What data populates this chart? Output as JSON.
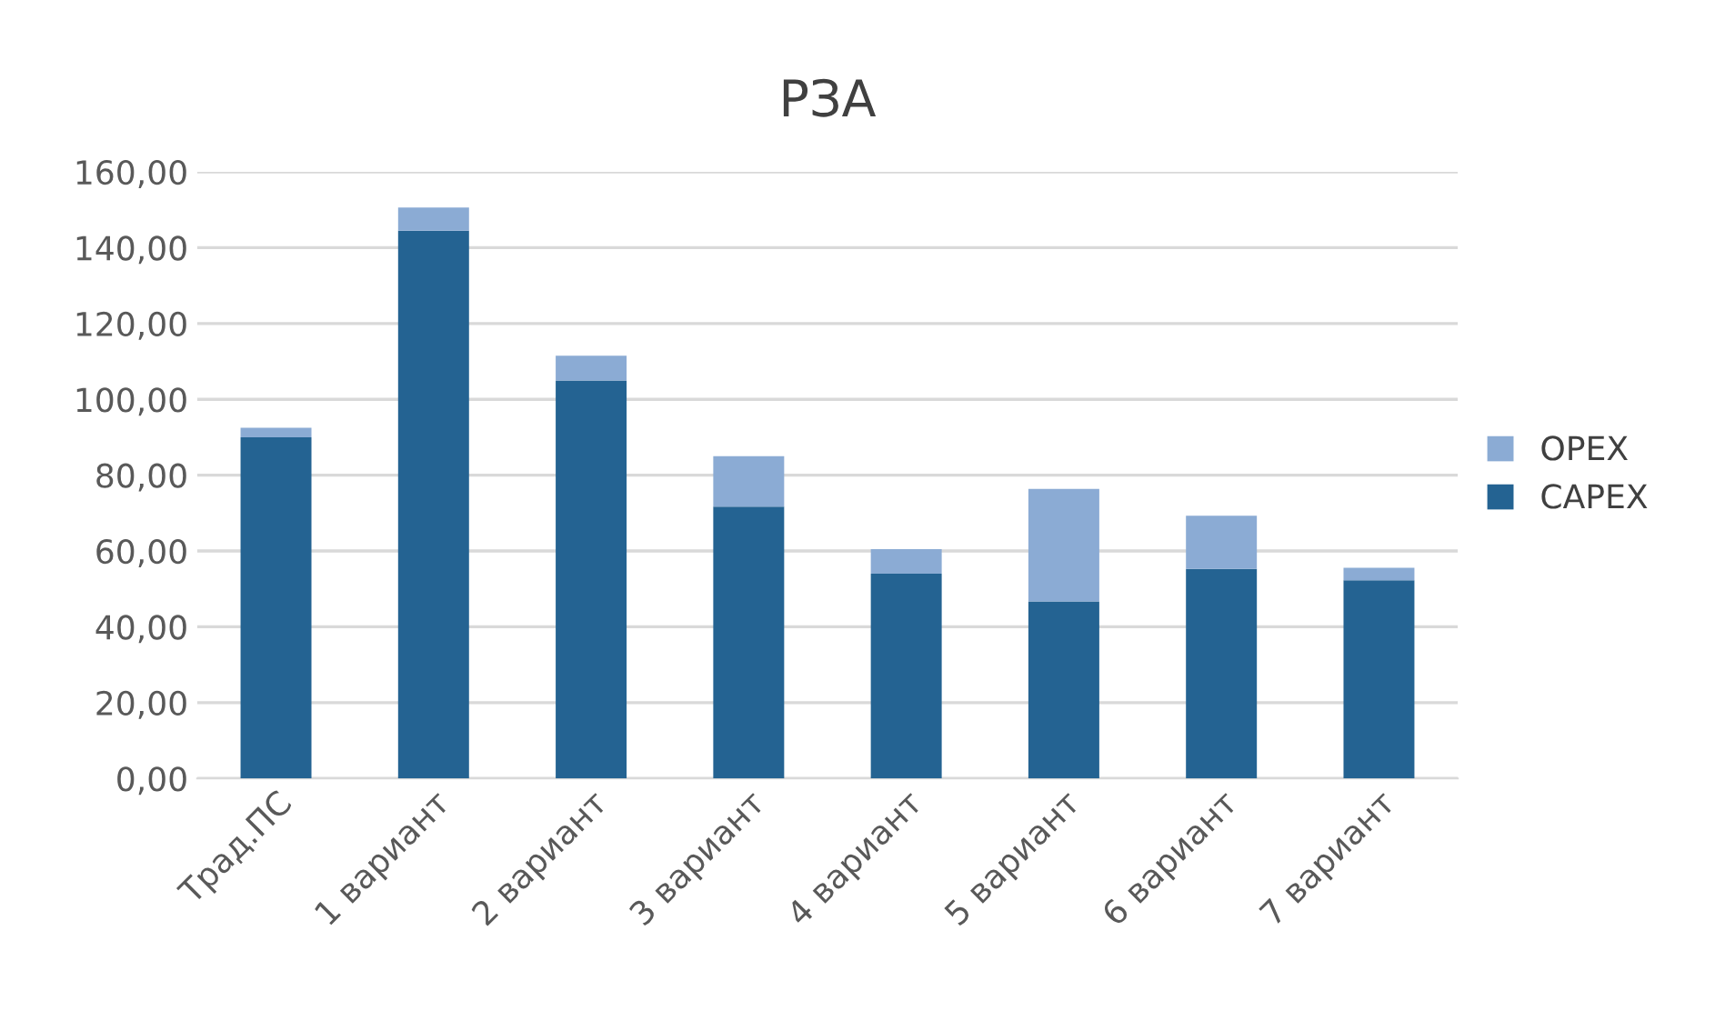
{
  "chart_data": {
    "type": "bar",
    "title": "РЗА",
    "stacked": true,
    "categories": [
      "Трад.ПС",
      "1 вариант",
      "2 вариант",
      "3 вариант",
      "4 вариант",
      "5 вариант",
      "6 вариант",
      "7 вариант"
    ],
    "series": [
      {
        "name": "CAPEX",
        "color": "#246392",
        "values": [
          90,
          144.5,
          105,
          71.7,
          54,
          46.7,
          55.3,
          52.3
        ]
      },
      {
        "name": "OPEX",
        "color": "#8babd4",
        "values": [
          2.5,
          6.1,
          6.5,
          13.3,
          6.5,
          29.7,
          14,
          3.3
        ]
      }
    ],
    "ylim": [
      0,
      160
    ],
    "yticks": [
      {
        "value": 0,
        "label": "0,00"
      },
      {
        "value": 20,
        "label": "20,00"
      },
      {
        "value": 40,
        "label": "40,00"
      },
      {
        "value": 60,
        "label": "60,00"
      },
      {
        "value": 80,
        "label": "80,00"
      },
      {
        "value": 100,
        "label": "100,00"
      },
      {
        "value": 120,
        "label": "120,00"
      },
      {
        "value": 140,
        "label": "140,00"
      },
      {
        "value": 160,
        "label": "160,00"
      }
    ],
    "grid": "y",
    "legend": "right"
  }
}
